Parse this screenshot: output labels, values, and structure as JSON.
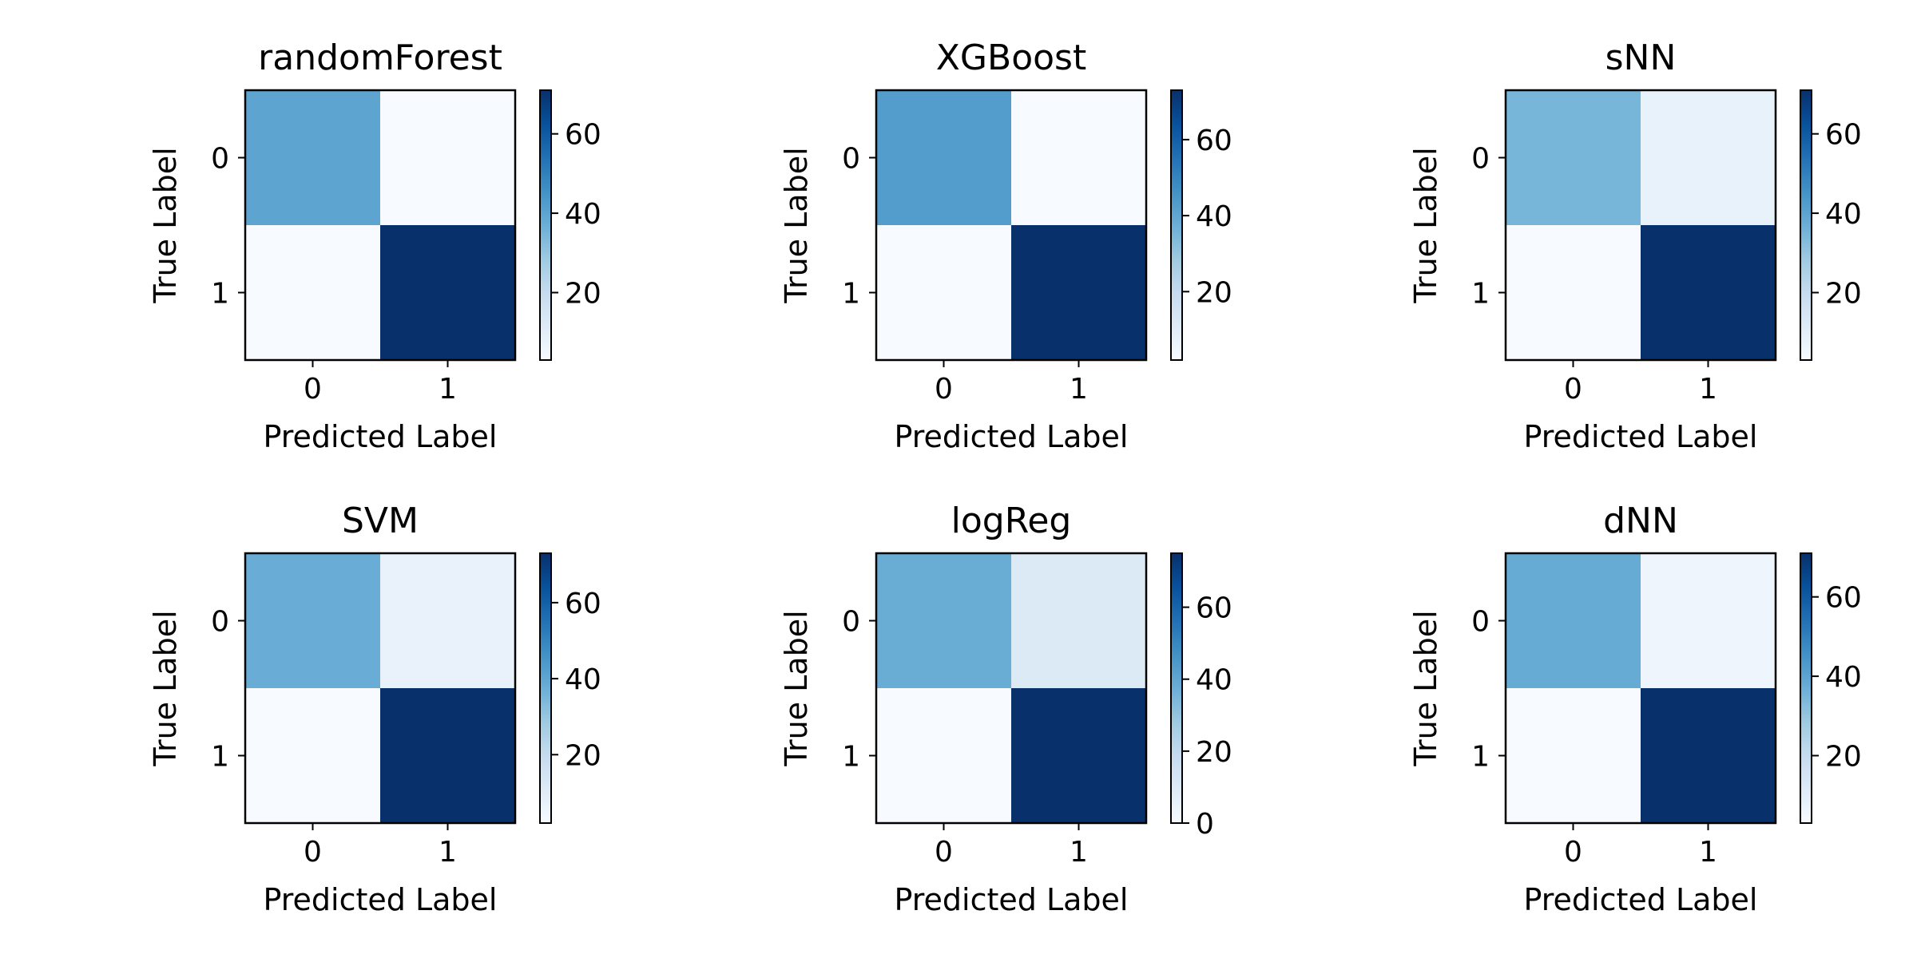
{
  "chart_data": [
    {
      "type": "heatmap",
      "title": "randomForest",
      "xlabel": "Predicted Label",
      "ylabel": "True Label",
      "x_ticks": [
        "0",
        "1"
      ],
      "y_ticks": [
        "0",
        "1"
      ],
      "matrix": [
        [
          40,
          3
        ],
        [
          3,
          71
        ]
      ],
      "colormap": "Blues",
      "colorbar": {
        "range": [
          3,
          71
        ],
        "ticks": [
          "20",
          "40",
          "60"
        ]
      }
    },
    {
      "type": "heatmap",
      "title": "XGBoost",
      "xlabel": "Predicted Label",
      "ylabel": "True Label",
      "x_ticks": [
        "0",
        "1"
      ],
      "y_ticks": [
        "0",
        "1"
      ],
      "matrix": [
        [
          43,
          2
        ],
        [
          2,
          73
        ]
      ],
      "colormap": "Blues",
      "colorbar": {
        "range": [
          2,
          73
        ],
        "ticks": [
          "20",
          "40",
          "60"
        ]
      }
    },
    {
      "type": "heatmap",
      "title": "sNN",
      "xlabel": "Predicted Label",
      "ylabel": "True Label",
      "x_ticks": [
        "0",
        "1"
      ],
      "y_ticks": [
        "0",
        "1"
      ],
      "matrix": [
        [
          35,
          8
        ],
        [
          3,
          71
        ]
      ],
      "colormap": "Blues",
      "colorbar": {
        "range": [
          3,
          71
        ],
        "ticks": [
          "20",
          "40",
          "60"
        ]
      }
    },
    {
      "type": "heatmap",
      "title": "SVM",
      "xlabel": "Predicted Label",
      "ylabel": "True Label",
      "x_ticks": [
        "0",
        "1"
      ],
      "y_ticks": [
        "0",
        "1"
      ],
      "matrix": [
        [
          38,
          7
        ],
        [
          2,
          73
        ]
      ],
      "colormap": "Blues",
      "colorbar": {
        "range": [
          2,
          73
        ],
        "ticks": [
          "20",
          "40",
          "60"
        ]
      }
    },
    {
      "type": "heatmap",
      "title": "logReg",
      "xlabel": "Predicted Label",
      "ylabel": "True Label",
      "x_ticks": [
        "0",
        "1"
      ],
      "y_ticks": [
        "0",
        "1"
      ],
      "matrix": [
        [
          38,
          10
        ],
        [
          0,
          75
        ]
      ],
      "colormap": "Blues",
      "colorbar": {
        "range": [
          0,
          75
        ],
        "ticks": [
          "0",
          "20",
          "40",
          "60"
        ]
      }
    },
    {
      "type": "heatmap",
      "title": "dNN",
      "xlabel": "Predicted Label",
      "ylabel": "True Label",
      "x_ticks": [
        "0",
        "1"
      ],
      "y_ticks": [
        "0",
        "1"
      ],
      "matrix": [
        [
          38,
          6
        ],
        [
          3,
          71
        ]
      ],
      "colormap": "Blues",
      "colorbar": {
        "range": [
          3,
          71
        ],
        "ticks": [
          "20",
          "40",
          "60"
        ]
      }
    }
  ]
}
